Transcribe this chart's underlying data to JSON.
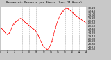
{
  "title": "Barometric Pressure per Minute (Last 24 Hours)",
  "bg_color": "#c8c8c8",
  "plot_bg_color": "#ffffff",
  "line_color": "#ff0000",
  "grid_color": "#999999",
  "y_min": 28.55,
  "y_max": 30.25,
  "data": [
    29.42,
    29.4,
    29.38,
    29.35,
    29.3,
    29.25,
    29.2,
    29.18,
    29.15,
    29.18,
    29.22,
    29.28,
    29.35,
    29.45,
    29.52,
    29.58,
    29.62,
    29.65,
    29.68,
    29.7,
    29.72,
    29.75,
    29.78,
    29.8,
    29.78,
    29.75,
    29.72,
    29.68,
    29.65,
    29.62,
    29.6,
    29.58,
    29.55,
    29.52,
    29.48,
    29.45,
    29.42,
    29.4,
    29.38,
    29.35,
    29.32,
    29.28,
    29.22,
    29.15,
    29.08,
    29.0,
    28.92,
    28.85,
    28.78,
    28.72,
    28.68,
    28.65,
    28.62,
    28.6,
    28.58,
    28.6,
    28.65,
    28.72,
    28.8,
    28.9,
    29.02,
    29.15,
    29.28,
    29.4,
    29.52,
    29.62,
    29.72,
    29.8,
    29.88,
    29.95,
    30.0,
    30.05,
    30.1,
    30.14,
    30.17,
    30.2,
    30.22,
    30.2,
    30.18,
    30.15,
    30.12,
    30.08,
    30.05,
    30.02,
    29.98,
    29.95,
    29.92,
    29.9,
    29.88,
    29.85,
    29.82,
    29.8,
    29.78,
    29.75,
    29.72,
    29.7,
    29.68,
    29.65,
    29.62,
    29.6
  ],
  "y_ticks": [
    28.6,
    28.7,
    28.8,
    28.9,
    29.0,
    29.1,
    29.2,
    29.3,
    29.4,
    29.5,
    29.6,
    29.7,
    29.8,
    29.9,
    30.0,
    30.1,
    30.2
  ],
  "num_vgrid": 12
}
